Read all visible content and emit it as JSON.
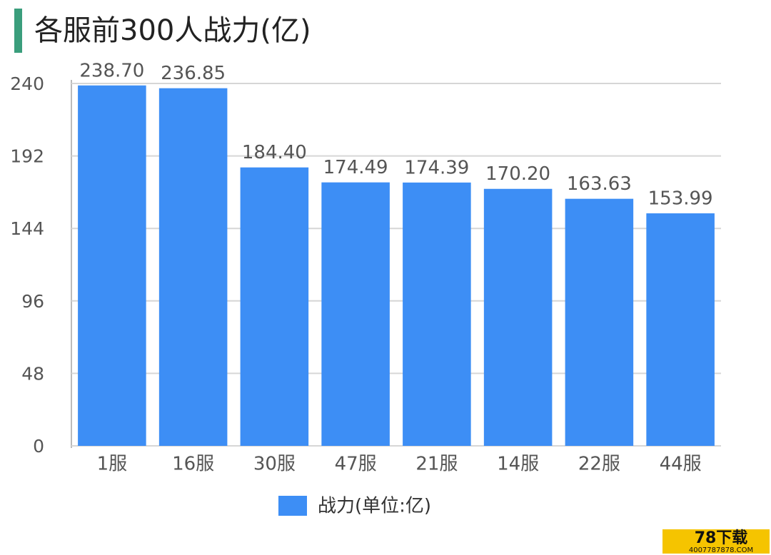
{
  "chart_data": {
    "type": "bar",
    "title": "各服前300人战力(亿)",
    "categories": [
      "1服",
      "16服",
      "30服",
      "47服",
      "21服",
      "14服",
      "22服",
      "44服"
    ],
    "series": [
      {
        "name": "战力(单位:亿)",
        "color": "#3d8ef5",
        "values": [
          238.7,
          236.85,
          184.4,
          174.49,
          174.39,
          170.2,
          163.63,
          153.99
        ],
        "value_labels": [
          "238.70",
          "236.85",
          "184.40",
          "174.49",
          "174.39",
          "170.20",
          "163.63",
          "153.99"
        ]
      }
    ],
    "ylim": [
      0,
      240
    ],
    "yticks": [
      0,
      48,
      96,
      144,
      192,
      240
    ],
    "grid": true,
    "legend": "bottom"
  },
  "watermark": {
    "name": "78下载",
    "url": "4007787878.COM"
  }
}
